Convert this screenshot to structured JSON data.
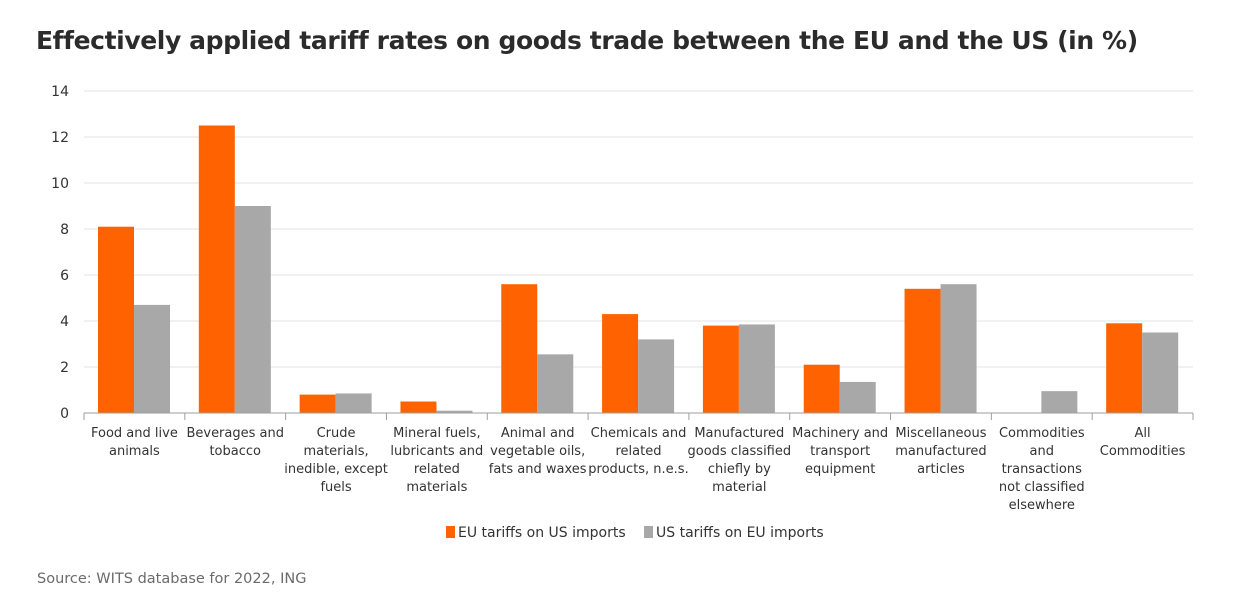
{
  "title": "Effectively applied tariff rates on goods trade between the EU and the US (in %)",
  "source": "Source: WITS database for 2022, ING",
  "colors": {
    "eu": "#FF6200",
    "us": "#A8A8A8",
    "grid": "#E3E3E3",
    "axis": "#9E9E9E"
  },
  "chart_data": {
    "type": "bar",
    "title": "Effectively applied tariff rates on goods trade between the EU and the US (in %)",
    "xlabel": "",
    "ylabel": "",
    "ylim": [
      0,
      14
    ],
    "yticks": [
      0,
      2,
      4,
      6,
      8,
      10,
      12,
      14
    ],
    "grid": true,
    "legend_position": "bottom-center",
    "categories": [
      [
        "Food and live",
        "animals"
      ],
      [
        "Beverages and",
        "tobacco"
      ],
      [
        "Crude",
        "materials,",
        "inedible, except",
        "fuels"
      ],
      [
        "Mineral fuels,",
        "lubricants and",
        "related",
        "materials"
      ],
      [
        "Animal and",
        "vegetable oils,",
        "fats and waxes"
      ],
      [
        "Chemicals and",
        "related",
        "products, n.e.s."
      ],
      [
        "Manufactured",
        "goods classified",
        "chiefly by",
        "material"
      ],
      [
        "Machinery and",
        "transport",
        "equipment"
      ],
      [
        "Miscellaneous",
        "manufactured",
        "articles"
      ],
      [
        "Commodities",
        "and",
        "transactions",
        "not classified",
        "elsewhere"
      ],
      [
        "All",
        "Commodities"
      ]
    ],
    "series": [
      {
        "name": "EU tariffs on US imports",
        "color": "#FF6200",
        "values": [
          8.1,
          12.5,
          0.8,
          0.5,
          5.6,
          4.3,
          3.8,
          2.1,
          5.4,
          0,
          3.9
        ]
      },
      {
        "name": "US tariffs on EU imports",
        "color": "#A8A8A8",
        "values": [
          4.7,
          9.0,
          0.85,
          0.1,
          2.55,
          3.2,
          3.85,
          1.35,
          5.6,
          0.95,
          3.5
        ]
      }
    ]
  }
}
